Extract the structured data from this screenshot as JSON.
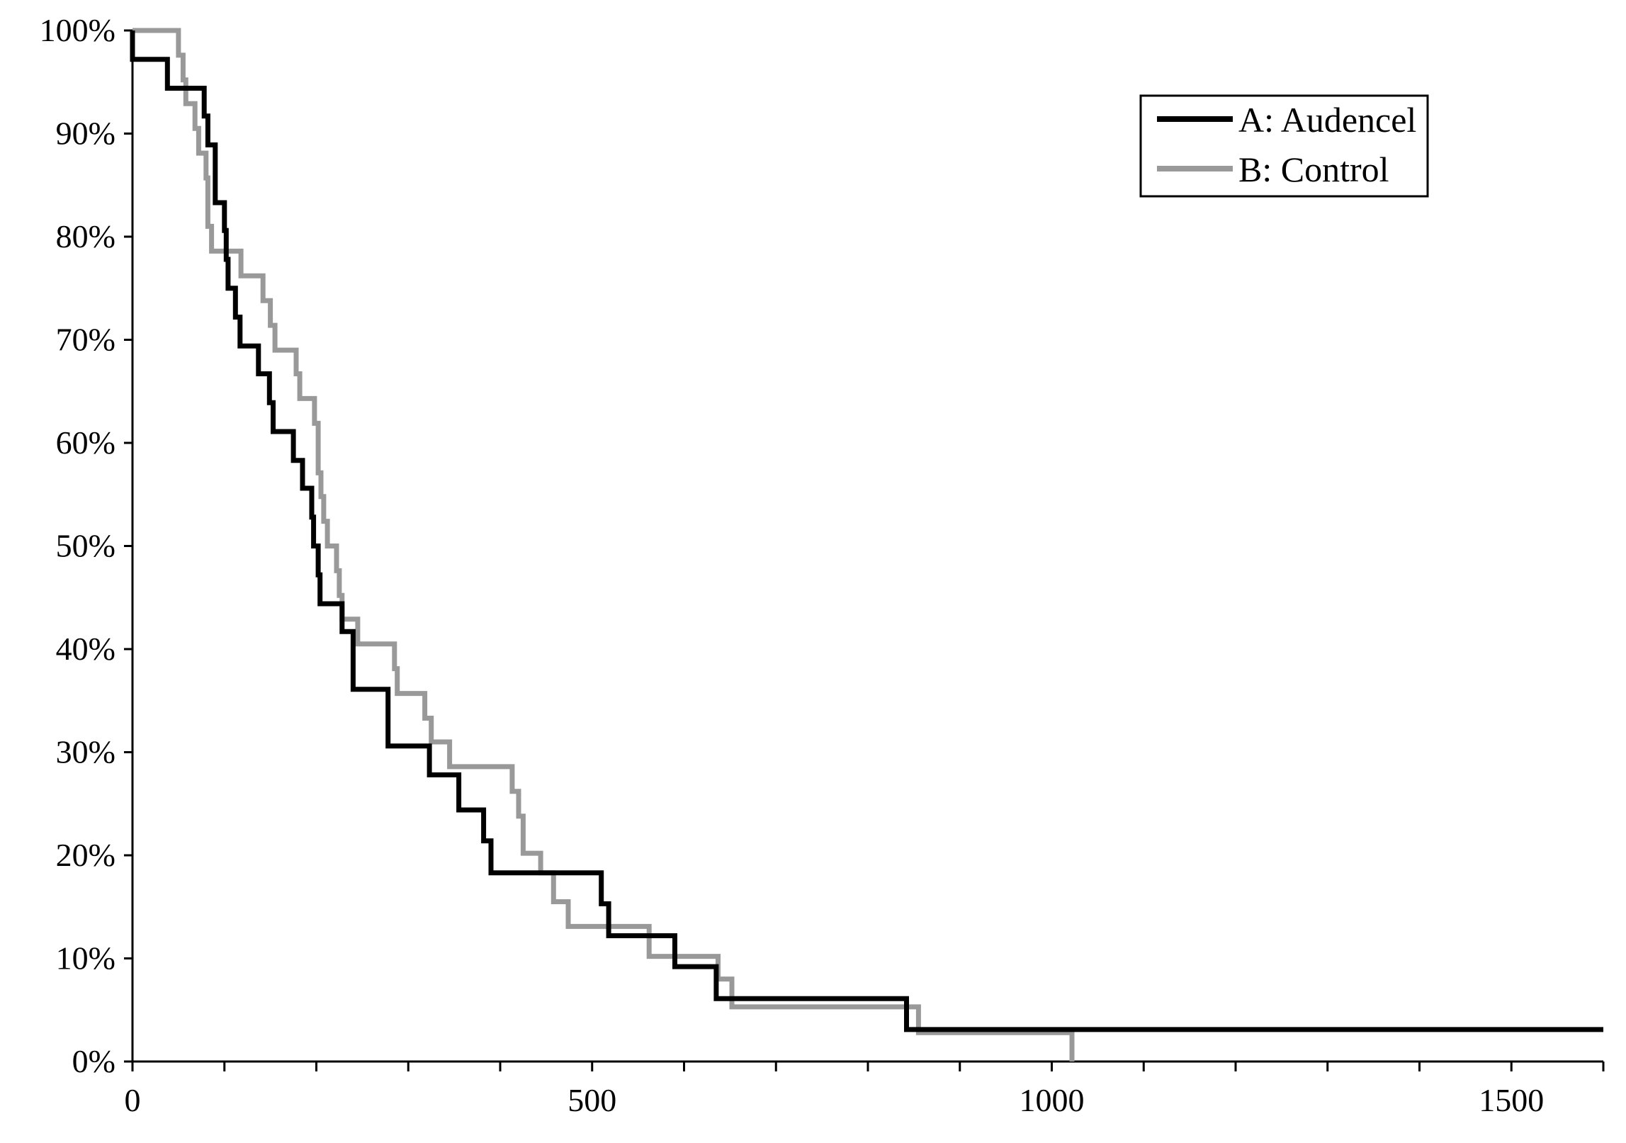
{
  "chart_data": {
    "type": "line",
    "title": "",
    "xlabel": "",
    "ylabel": "",
    "xlim": [
      0,
      1600
    ],
    "ylim": [
      0,
      100
    ],
    "grid": false,
    "legend_position": "top-right",
    "x_ticks": [
      0,
      500,
      1000,
      1500
    ],
    "x_tick_labels": [
      "0",
      "500",
      "1000",
      "1500"
    ],
    "x_minor_step": 100,
    "y_ticks": [
      0,
      10,
      20,
      30,
      40,
      50,
      60,
      70,
      80,
      90,
      100
    ],
    "y_tick_labels": [
      "0%",
      "10%",
      "20%",
      "30%",
      "40%",
      "50%",
      "60%",
      "70%",
      "80%",
      "90%",
      "100%"
    ],
    "series": [
      {
        "name": "A: Audencel",
        "color": "#000000",
        "step": true,
        "points": [
          [
            0,
            100
          ],
          [
            0,
            97.2
          ],
          [
            38,
            97.2
          ],
          [
            38,
            94.4
          ],
          [
            78,
            94.4
          ],
          [
            78,
            91.7
          ],
          [
            82,
            91.7
          ],
          [
            82,
            88.9
          ],
          [
            90,
            88.9
          ],
          [
            90,
            83.3
          ],
          [
            100,
            83.3
          ],
          [
            100,
            80.6
          ],
          [
            102,
            80.6
          ],
          [
            102,
            77.8
          ],
          [
            104,
            77.8
          ],
          [
            104,
            75.0
          ],
          [
            112,
            75.0
          ],
          [
            112,
            72.2
          ],
          [
            117,
            72.2
          ],
          [
            117,
            69.4
          ],
          [
            137,
            69.4
          ],
          [
            137,
            66.7
          ],
          [
            149,
            66.7
          ],
          [
            149,
            63.9
          ],
          [
            153,
            63.9
          ],
          [
            153,
            61.1
          ],
          [
            175,
            61.1
          ],
          [
            175,
            58.3
          ],
          [
            185,
            58.3
          ],
          [
            185,
            55.6
          ],
          [
            195,
            55.6
          ],
          [
            195,
            52.8
          ],
          [
            197,
            52.8
          ],
          [
            197,
            50.0
          ],
          [
            202,
            50.0
          ],
          [
            202,
            47.2
          ],
          [
            204,
            47.2
          ],
          [
            204,
            44.4
          ],
          [
            228,
            44.4
          ],
          [
            228,
            41.7
          ],
          [
            240,
            41.7
          ],
          [
            240,
            36.1
          ],
          [
            278,
            36.1
          ],
          [
            278,
            30.6
          ],
          [
            323,
            30.6
          ],
          [
            323,
            27.8
          ],
          [
            355,
            27.8
          ],
          [
            355,
            24.4
          ],
          [
            382,
            24.4
          ],
          [
            382,
            21.4
          ],
          [
            390,
            21.4
          ],
          [
            390,
            18.3
          ],
          [
            510,
            18.3
          ],
          [
            510,
            15.3
          ],
          [
            518,
            15.3
          ],
          [
            518,
            12.2
          ],
          [
            590,
            12.2
          ],
          [
            590,
            9.2
          ],
          [
            635,
            9.2
          ],
          [
            635,
            6.1
          ],
          [
            842,
            6.1
          ],
          [
            842,
            3.1
          ],
          [
            1600,
            3.1
          ]
        ]
      },
      {
        "name": "B: Control",
        "color": "#999999",
        "step": true,
        "points": [
          [
            0,
            100
          ],
          [
            50,
            100
          ],
          [
            50,
            97.6
          ],
          [
            55,
            97.6
          ],
          [
            55,
            95.2
          ],
          [
            58,
            95.2
          ],
          [
            58,
            92.9
          ],
          [
            68,
            92.9
          ],
          [
            68,
            90.5
          ],
          [
            72,
            90.5
          ],
          [
            72,
            88.1
          ],
          [
            80,
            88.1
          ],
          [
            80,
            85.7
          ],
          [
            82,
            85.7
          ],
          [
            82,
            81.0
          ],
          [
            86,
            81.0
          ],
          [
            86,
            78.6
          ],
          [
            118,
            78.6
          ],
          [
            118,
            76.2
          ],
          [
            142,
            76.2
          ],
          [
            142,
            73.8
          ],
          [
            150,
            73.8
          ],
          [
            150,
            71.4
          ],
          [
            155,
            71.4
          ],
          [
            155,
            69.0
          ],
          [
            178,
            69.0
          ],
          [
            178,
            66.7
          ],
          [
            182,
            66.7
          ],
          [
            182,
            64.3
          ],
          [
            198,
            64.3
          ],
          [
            198,
            61.9
          ],
          [
            202,
            61.9
          ],
          [
            202,
            57.1
          ],
          [
            205,
            57.1
          ],
          [
            205,
            54.8
          ],
          [
            208,
            54.8
          ],
          [
            208,
            52.4
          ],
          [
            212,
            52.4
          ],
          [
            212,
            50.0
          ],
          [
            222,
            50.0
          ],
          [
            222,
            47.6
          ],
          [
            225,
            47.6
          ],
          [
            225,
            45.2
          ],
          [
            228,
            45.2
          ],
          [
            228,
            42.9
          ],
          [
            245,
            42.9
          ],
          [
            245,
            40.5
          ],
          [
            285,
            40.5
          ],
          [
            285,
            38.1
          ],
          [
            288,
            38.1
          ],
          [
            288,
            35.7
          ],
          [
            318,
            35.7
          ],
          [
            318,
            33.3
          ],
          [
            325,
            33.3
          ],
          [
            325,
            31.0
          ],
          [
            345,
            31.0
          ],
          [
            345,
            28.6
          ],
          [
            413,
            28.6
          ],
          [
            413,
            26.2
          ],
          [
            420,
            26.2
          ],
          [
            420,
            23.8
          ],
          [
            425,
            23.8
          ],
          [
            425,
            20.2
          ],
          [
            444,
            20.2
          ],
          [
            444,
            18.3
          ],
          [
            458,
            18.3
          ],
          [
            458,
            15.5
          ],
          [
            474,
            15.5
          ],
          [
            474,
            13.1
          ],
          [
            562,
            13.1
          ],
          [
            562,
            10.2
          ],
          [
            637,
            10.2
          ],
          [
            637,
            8.0
          ],
          [
            652,
            8.0
          ],
          [
            652,
            5.3
          ],
          [
            855,
            5.3
          ],
          [
            855,
            2.8
          ],
          [
            1022,
            2.8
          ],
          [
            1022,
            0
          ]
        ]
      }
    ]
  }
}
